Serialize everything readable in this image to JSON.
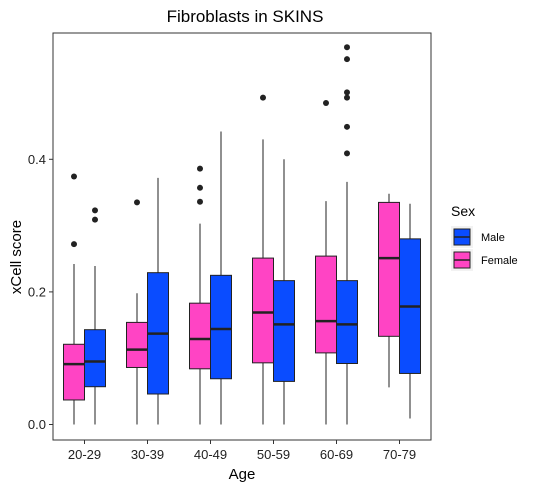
{
  "chart_data": {
    "type": "boxplot",
    "title": "Fibroblasts in SKINS",
    "xlabel": "Age",
    "ylabel": "xCell score",
    "categories": [
      "20-29",
      "30-39",
      "40-49",
      "50-59",
      "60-69",
      "70-79"
    ],
    "yticks": [
      "0.0",
      "0.2",
      "0.4"
    ],
    "ylim": [
      -0.015,
      0.59
    ],
    "grid": false,
    "legend": {
      "title": "Sex",
      "placement": "right",
      "entries": [
        {
          "name": "Male",
          "color": "#0A4CFF"
        },
        {
          "name": "Female",
          "color": "#FF44C4"
        }
      ]
    },
    "series": [
      {
        "name": "Female",
        "color": "#FF44C4",
        "boxes": [
          {
            "q1": 0.037,
            "median": 0.091,
            "q3": 0.121,
            "whisker_low": 0.0,
            "whisker_high": 0.242,
            "outliers": [
              0.272,
              0.374
            ]
          },
          {
            "q1": 0.086,
            "median": 0.113,
            "q3": 0.154,
            "whisker_low": 0.0,
            "whisker_high": 0.198,
            "outliers": [
              0.335
            ]
          },
          {
            "q1": 0.084,
            "median": 0.129,
            "q3": 0.183,
            "whisker_low": 0.0,
            "whisker_high": 0.303,
            "outliers": [
              0.336,
              0.357,
              0.386
            ]
          },
          {
            "q1": 0.093,
            "median": 0.169,
            "q3": 0.251,
            "whisker_low": 0.0,
            "whisker_high": 0.43,
            "outliers": [
              0.493
            ]
          },
          {
            "q1": 0.108,
            "median": 0.156,
            "q3": 0.254,
            "whisker_low": 0.0,
            "whisker_high": 0.337,
            "outliers": [
              0.485
            ]
          },
          {
            "q1": 0.133,
            "median": 0.251,
            "q3": 0.335,
            "whisker_low": 0.056,
            "whisker_high": 0.348,
            "outliers": []
          }
        ]
      },
      {
        "name": "Male",
        "color": "#0A4CFF",
        "boxes": [
          {
            "q1": 0.057,
            "median": 0.095,
            "q3": 0.143,
            "whisker_low": 0.0,
            "whisker_high": 0.239,
            "outliers": [
              0.309,
              0.323
            ]
          },
          {
            "q1": 0.046,
            "median": 0.137,
            "q3": 0.229,
            "whisker_low": 0.0,
            "whisker_high": 0.372,
            "outliers": []
          },
          {
            "q1": 0.069,
            "median": 0.144,
            "q3": 0.225,
            "whisker_low": 0.0,
            "whisker_high": 0.442,
            "outliers": []
          },
          {
            "q1": 0.065,
            "median": 0.151,
            "q3": 0.217,
            "whisker_low": 0.0,
            "whisker_high": 0.4,
            "outliers": []
          },
          {
            "q1": 0.092,
            "median": 0.151,
            "q3": 0.217,
            "whisker_low": 0.0,
            "whisker_high": 0.366,
            "outliers": [
              0.409,
              0.449,
              0.493,
              0.501,
              0.551,
              0.569
            ]
          },
          {
            "q1": 0.077,
            "median": 0.178,
            "q3": 0.28,
            "whisker_low": 0.009,
            "whisker_high": 0.333,
            "outliers": []
          }
        ]
      }
    ]
  }
}
